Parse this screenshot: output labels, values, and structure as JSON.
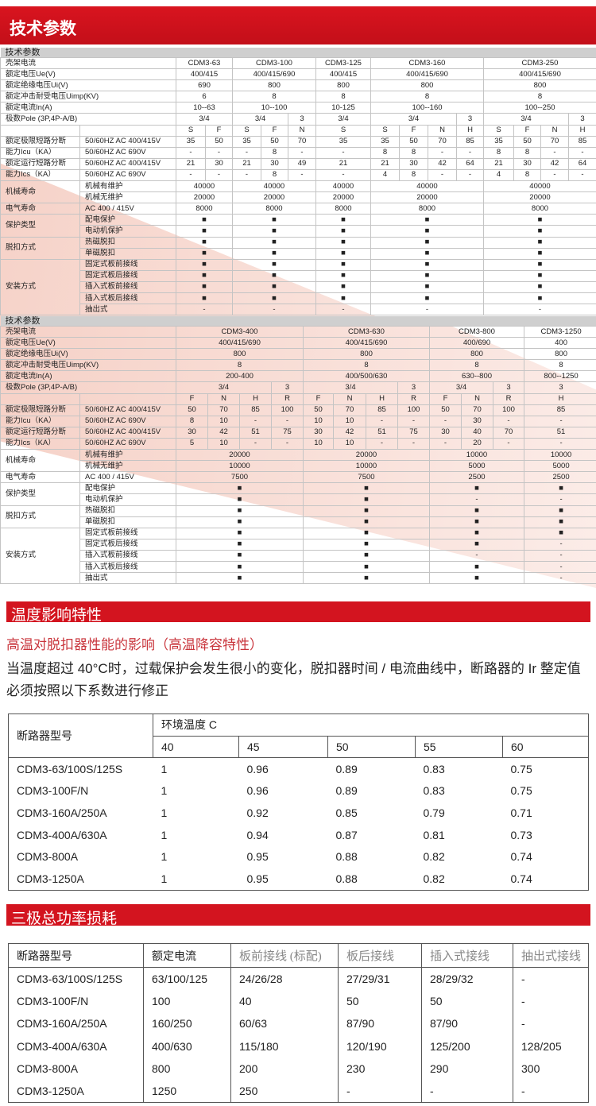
{
  "header": {
    "title": "技术参数"
  },
  "spec_labels": {
    "frame": "壳架电流",
    "ue": "额定电压Ue(V)",
    "ui": "额定绝缘电压Ui(V)",
    "uimp": "额定冲击耐受电压Uimp(KV)",
    "in": "额定电流In(A)",
    "pole": "极数Pole (3P,4P-A/B)",
    "icu_a": "额定极限短路分断",
    "icu_b": "能力Icu（KA）",
    "ics_a": "额定运行短路分断",
    "ics_b": "能力Ics（KA）",
    "ac400": "50/60HZ  AC 400/415V",
    "ac690": "50/60HZ  AC 690V",
    "mech": "机械寿命",
    "mech_maint": "机械有维护",
    "mech_nomaint": "机械无维护",
    "elec": "电气寿命",
    "elec_sub": "AC 400 / 415V",
    "protection": "保护类型",
    "protection_items": [
      "配电保护",
      "电动机保护"
    ],
    "trip": "脱扣方式",
    "trip_items": [
      "热磁脱扣",
      "单磁脱扣"
    ],
    "install": "安装方式",
    "install_items": [
      "固定式板前接线",
      "固定式板后接线",
      "插入式板前接线",
      "插入式板后接线",
      "抽出式"
    ]
  },
  "spec_tables": [
    {
      "section": "技术参数",
      "frames": [
        {
          "name": "CDM3-63",
          "ue": "400/415",
          "ui": "690",
          "uimp": "6",
          "in": "10--63",
          "poles": [
            {
              "label": "3/4",
              "grades": [
                "S",
                "F"
              ]
            }
          ],
          "icu_400": [
            "35",
            "50"
          ],
          "icu_690": [
            "-",
            "-"
          ],
          "ics_400": [
            "21",
            "30"
          ],
          "ics_690": [
            "-",
            "-"
          ],
          "mech_maint": "40000",
          "mech_nomaint": "20000",
          "elec": "8000",
          "protection": [
            "■",
            "■"
          ],
          "trip": [
            "■",
            "■"
          ],
          "install": [
            "■",
            "■",
            "■",
            "■",
            "-"
          ]
        },
        {
          "name": "CDM3-100",
          "ue": "400/415/690",
          "ui": "800",
          "uimp": "8",
          "in": "10--100",
          "poles": [
            {
              "label": "3/4",
              "grades": [
                "S",
                "F"
              ]
            },
            {
              "label": "3",
              "grades": [
                "N"
              ]
            }
          ],
          "icu_400": [
            "35",
            "50",
            "70"
          ],
          "icu_690": [
            "-",
            "8",
            "-"
          ],
          "ics_400": [
            "21",
            "30",
            "49"
          ],
          "ics_690": [
            "-",
            "8",
            "-"
          ],
          "mech_maint": "40000",
          "mech_nomaint": "20000",
          "elec": "8000",
          "protection": [
            "■",
            "■"
          ],
          "trip": [
            "■",
            "■"
          ],
          "install": [
            "■",
            "■",
            "■",
            "■",
            "-"
          ]
        },
        {
          "name": "CDM3-125",
          "ue": "400/415",
          "ui": "800",
          "uimp": "8",
          "in": "10-125",
          "poles": [
            {
              "label": "3/4",
              "grades": [
                "S"
              ]
            }
          ],
          "icu_400": [
            "35"
          ],
          "icu_690": [
            "-"
          ],
          "ics_400": [
            "21"
          ],
          "ics_690": [
            "-"
          ],
          "mech_maint": "40000",
          "mech_nomaint": "20000",
          "elec": "8000",
          "protection": [
            "■",
            "■"
          ],
          "trip": [
            "■",
            "■"
          ],
          "install": [
            "■",
            "■",
            "■",
            "■",
            "-"
          ]
        },
        {
          "name": "CDM3-160",
          "ue": "400/415/690",
          "ui": "800",
          "uimp": "8",
          "in": "100--160",
          "poles": [
            {
              "label": "3/4",
              "grades": [
                "S",
                "F",
                "N"
              ]
            },
            {
              "label": "3",
              "grades": [
                "H"
              ]
            }
          ],
          "icu_400": [
            "35",
            "50",
            "70",
            "85"
          ],
          "icu_690": [
            "8",
            "8",
            "-",
            "-"
          ],
          "ics_400": [
            "21",
            "30",
            "42",
            "64"
          ],
          "ics_690": [
            "4",
            "8",
            "-",
            "-"
          ],
          "mech_maint": "40000",
          "mech_nomaint": "20000",
          "elec": "8000",
          "protection": [
            "■",
            "■"
          ],
          "trip": [
            "■",
            "■"
          ],
          "install": [
            "■",
            "■",
            "■",
            "■",
            "-"
          ]
        },
        {
          "name": "CDM3-250",
          "ue": "400/415/690",
          "ui": "800",
          "uimp": "8",
          "in": "100--250",
          "poles": [
            {
              "label": "3/4",
              "grades": [
                "S",
                "F",
                "N"
              ]
            },
            {
              "label": "3",
              "grades": [
                "H"
              ]
            }
          ],
          "icu_400": [
            "35",
            "50",
            "70",
            "85"
          ],
          "icu_690": [
            "8",
            "8",
            "-",
            "-"
          ],
          "ics_400": [
            "21",
            "30",
            "42",
            "64"
          ],
          "ics_690": [
            "4",
            "8",
            "-",
            "-"
          ],
          "mech_maint": "40000",
          "mech_nomaint": "20000",
          "elec": "8000",
          "protection": [
            "■",
            "■"
          ],
          "trip": [
            "■",
            "■"
          ],
          "install": [
            "■",
            "■",
            "■",
            "■",
            "-"
          ]
        }
      ]
    },
    {
      "section": "技术参数",
      "frames": [
        {
          "name": "CDM3-400",
          "ue": "400/415/690",
          "ui": "800",
          "uimp": "8",
          "in": "200-400",
          "poles": [
            {
              "label": "3/4",
              "grades": [
                "F",
                "N",
                "H"
              ]
            },
            {
              "label": "3",
              "grades": [
                "R"
              ]
            }
          ],
          "icu_400": [
            "50",
            "70",
            "85",
            "100"
          ],
          "icu_690": [
            "8",
            "10",
            "-",
            "-"
          ],
          "ics_400": [
            "30",
            "42",
            "51",
            "75"
          ],
          "ics_690": [
            "5",
            "10",
            "-",
            "-"
          ],
          "mech_maint": "20000",
          "mech_nomaint": "10000",
          "elec": "7500",
          "protection": [
            "■",
            "■"
          ],
          "trip": [
            "■",
            "■"
          ],
          "install": [
            "■",
            "■",
            "■",
            "■",
            "■"
          ]
        },
        {
          "name": "CDM3-630",
          "ue": "400/415/690",
          "ui": "800",
          "uimp": "8",
          "in": "400/500/630",
          "poles": [
            {
              "label": "3/4",
              "grades": [
                "F",
                "N",
                "H"
              ]
            },
            {
              "label": "3",
              "grades": [
                "R"
              ]
            }
          ],
          "icu_400": [
            "50",
            "70",
            "85",
            "100"
          ],
          "icu_690": [
            "10",
            "10",
            "-",
            "-"
          ],
          "ics_400": [
            "30",
            "42",
            "51",
            "75"
          ],
          "ics_690": [
            "10",
            "10",
            "-",
            "-"
          ],
          "mech_maint": "20000",
          "mech_nomaint": "10000",
          "elec": "7500",
          "protection": [
            "■",
            "■"
          ],
          "trip": [
            "■",
            "■"
          ],
          "install": [
            "■",
            "■",
            "■",
            "■",
            "■"
          ]
        },
        {
          "name": "CDM3-800",
          "ue": "400/690",
          "ui": "800",
          "uimp": "8",
          "in": "630--800",
          "poles": [
            {
              "label": "3/4",
              "grades": [
                "F",
                "N"
              ]
            },
            {
              "label": "3",
              "grades": [
                "R"
              ]
            }
          ],
          "icu_400": [
            "50",
            "70",
            "100"
          ],
          "icu_690": [
            "-",
            "30",
            "-"
          ],
          "ics_400": [
            "30",
            "40",
            "70"
          ],
          "ics_690": [
            "-",
            "20",
            "-"
          ],
          "mech_maint": "10000",
          "mech_nomaint": "5000",
          "elec": "2500",
          "protection": [
            "■",
            "-"
          ],
          "trip": [
            "■",
            "■"
          ],
          "install": [
            "■",
            "■",
            "-",
            "■",
            "■"
          ]
        },
        {
          "name": "CDM3-1250",
          "ue": "400",
          "ui": "800",
          "uimp": "8",
          "in": "800--1250",
          "poles": [
            {
              "label": "3",
              "grades": [
                "H"
              ]
            }
          ],
          "icu_400": [
            "85"
          ],
          "icu_690": [
            "-"
          ],
          "ics_400": [
            "51"
          ],
          "ics_690": [
            "-"
          ],
          "mech_maint": "10000",
          "mech_nomaint": "5000",
          "elec": "2500",
          "protection": [
            "■",
            "-"
          ],
          "trip": [
            "■",
            "■"
          ],
          "install": [
            "■",
            "-",
            "-",
            "-",
            "-"
          ]
        }
      ]
    }
  ],
  "temperature": {
    "banner": "温度影响特性",
    "subtitle": "高温对脱扣器性能的影响（高温降容特性）",
    "paragraph_line1": "当温度超过 40°C时，过载保护会发生很小的变化，脱扣器时间 / 电流曲线中，断路器的 Ir 整定值",
    "paragraph_line2": "必须按照以下系数进行修正",
    "model_header": "断路器型号",
    "temp_header": "环境温度 C",
    "temps": [
      "40",
      "45",
      "50",
      "55",
      "60"
    ],
    "rows": [
      {
        "model": "CDM3-63/100S/125S",
        "values": [
          "1",
          "0.96",
          "0.89",
          "0.83",
          "0.75"
        ]
      },
      {
        "model": "CDM3-100F/N",
        "values": [
          "1",
          "0.96",
          "0.89",
          "0.83",
          "0.75"
        ]
      },
      {
        "model": "CDM3-160A/250A",
        "values": [
          "1",
          "0.92",
          "0.85",
          "0.79",
          "0.71"
        ]
      },
      {
        "model": "CDM3-400A/630A",
        "values": [
          "1",
          "0.94",
          "0.87",
          "0.81",
          "0.73"
        ]
      },
      {
        "model": "CDM3-800A",
        "values": [
          "1",
          "0.95",
          "0.88",
          "0.82",
          "0.74"
        ]
      },
      {
        "model": "CDM3-1250A",
        "values": [
          "1",
          "0.95",
          "0.88",
          "0.82",
          "0.74"
        ]
      }
    ]
  },
  "power_loss": {
    "banner": "三极总功率损耗",
    "headers": [
      "断路器型号",
      "额定电流",
      "板前接线 (标配)",
      "板后接线",
      "插入式接线",
      "抽出式接线"
    ],
    "rows": [
      [
        "CDM3-63/100S/125S",
        "63/100/125",
        "24/26/28",
        "27/29/31",
        "28/29/32",
        "-"
      ],
      [
        "CDM3-100F/N",
        "100",
        "40",
        "50",
        "50",
        "-"
      ],
      [
        "CDM3-160A/250A",
        "160/250",
        "60/63",
        "87/90",
        "87/90",
        "-"
      ],
      [
        "CDM3-400A/630A",
        "400/630",
        "115/180",
        "120/190",
        "125/200",
        "128/205"
      ],
      [
        "CDM3-800A",
        "800",
        "200",
        "230",
        "290",
        "300"
      ],
      [
        "CDM3-1250A",
        "1250",
        "250",
        "-",
        "-",
        "-"
      ]
    ]
  },
  "colors": {
    "brand_red": "#d3141f",
    "subtitle_red": "#c9353c",
    "section_gray": "#cfcfcf",
    "diagonal_pink": "#f4c9bd"
  }
}
